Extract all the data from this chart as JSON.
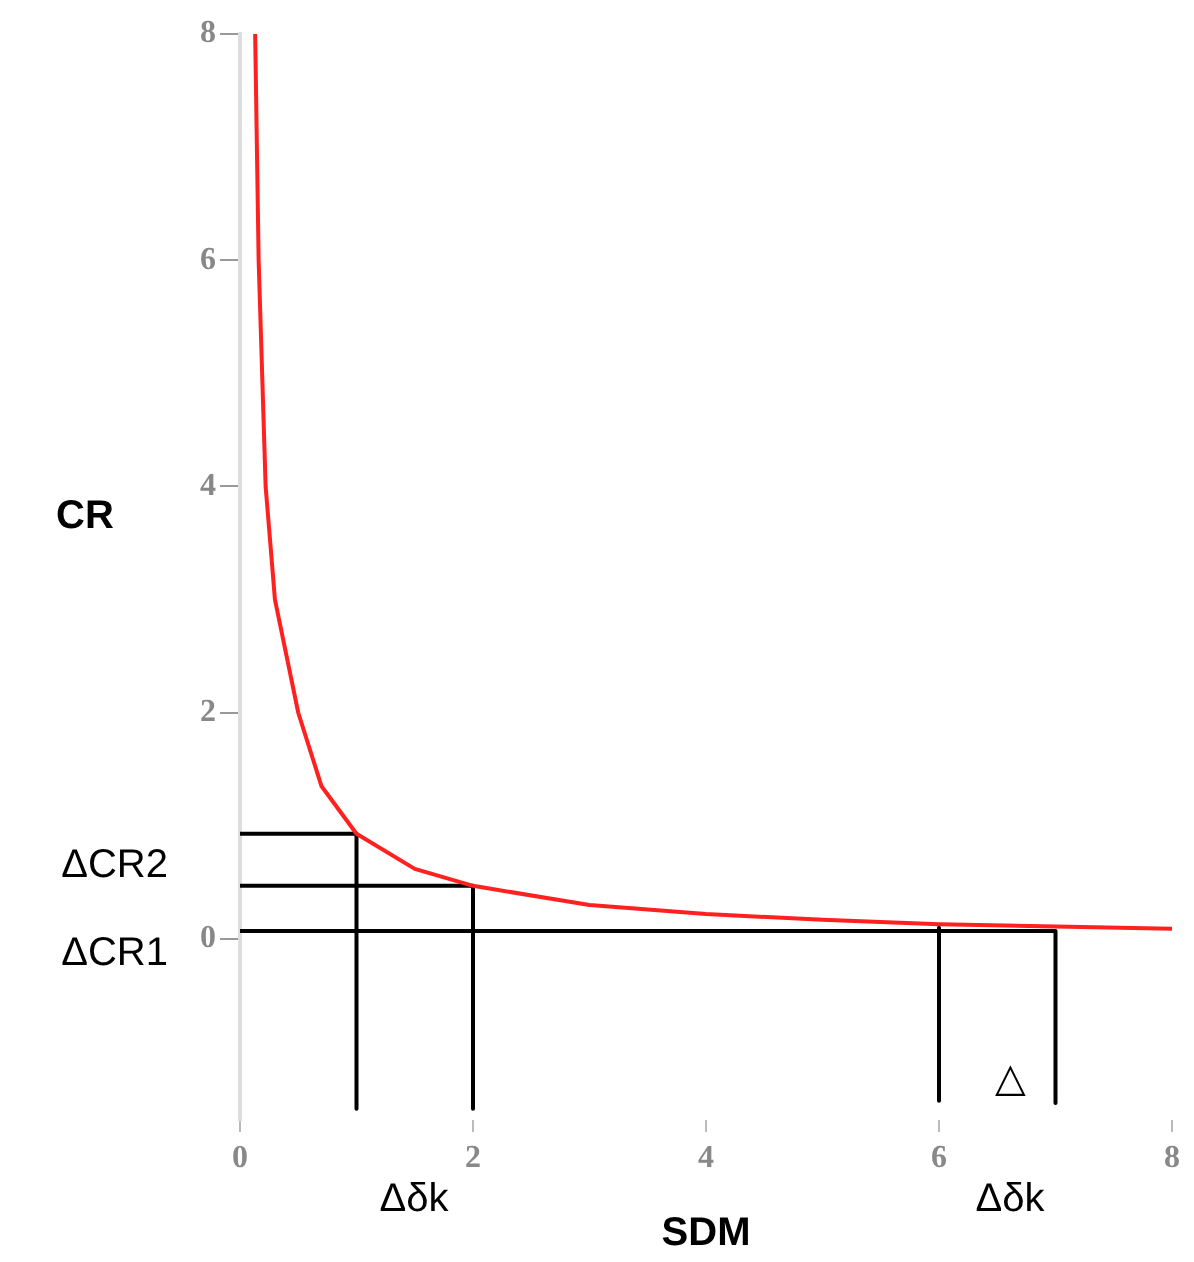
{
  "chart_data": {
    "type": "line",
    "xlabel": "SDM",
    "ylabel": "CR",
    "xlim": [
      0,
      8
    ],
    "ylim": [
      -1.6,
      8
    ],
    "xticks": [
      0,
      2,
      4,
      6,
      8
    ],
    "yticks": [
      0,
      2,
      4,
      6,
      8
    ],
    "grid": false,
    "legend": false,
    "marker": "none",
    "line_style": "solid",
    "series": [
      {
        "color": "#ff2020",
        "x": [
          0.13,
          0.16,
          0.22,
          0.3,
          0.5,
          0.7,
          1,
          1.5,
          2,
          3,
          4,
          5,
          6,
          7,
          8
        ],
        "values": [
          8,
          6,
          4,
          3,
          2,
          1.35,
          0.93,
          0.62,
          0.47,
          0.3,
          0.22,
          0.17,
          0.13,
          0.11,
          0.09
        ]
      },
      {
        "color": "#000000",
        "x": [
          0,
          7
        ],
        "values": [
          0.07,
          0.07
        ]
      },
      {
        "color": "#000000",
        "x": [
          0,
          1
        ],
        "values": [
          0.93,
          0.93
        ]
      },
      {
        "color": "#000000",
        "x": [
          1,
          1
        ],
        "values": [
          0.93,
          -1.5
        ]
      },
      {
        "color": "#000000",
        "x": [
          0,
          2
        ],
        "values": [
          0.47,
          0.47
        ]
      },
      {
        "color": "#000000",
        "x": [
          2,
          2
        ],
        "values": [
          0.47,
          -1.5
        ]
      },
      {
        "color": "#000000",
        "x": [
          6,
          6
        ],
        "values": [
          0.1,
          -1.43
        ]
      },
      {
        "color": "#000000",
        "x": [
          7,
          7
        ],
        "values": [
          0.07,
          -1.45
        ]
      }
    ],
    "annotations": [
      "ΔCR2",
      "ΔCR1",
      "Δδk",
      "△",
      "Δδk"
    ]
  }
}
